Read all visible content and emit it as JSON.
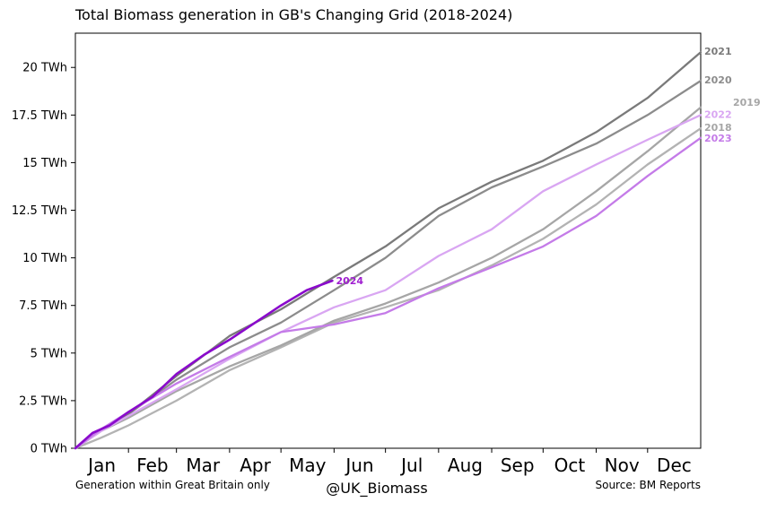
{
  "chart_data": {
    "type": "line",
    "title": "Total Biomass generation in GB's Changing Grid (2018-2024)",
    "footer_left": "Generation within Great Britain only",
    "footer_center": "@UK_Biomass",
    "footer_right": "Source: BM Reports",
    "x_ticks": [
      "Jan",
      "Feb",
      "Mar",
      "Apr",
      "May",
      "Jun",
      "Jul",
      "Aug",
      "Sep",
      "Oct",
      "Nov",
      "Dec"
    ],
    "y_ticks": [
      "0 TWh",
      "2.5 TWh",
      "5 TWh",
      "7.5 TWh",
      "10 TWh",
      "12.5 TWh",
      "15 TWh",
      "17.5 TWh",
      "20 TWh"
    ],
    "y_tick_values": [
      0,
      2.5,
      5,
      7.5,
      10,
      12.5,
      15,
      17.5,
      20
    ],
    "xlim": [
      0,
      365
    ],
    "ylim": [
      0,
      21.8
    ],
    "grid": false,
    "x_unit": "day of year",
    "y_unit": "TWh cumulative",
    "series": [
      {
        "name": "2018",
        "color": "#b3b3b3",
        "x": [
          0,
          15,
          31,
          59,
          90,
          120,
          151,
          181,
          212,
          243,
          273,
          304,
          334,
          365
        ],
        "y": [
          0,
          0.55,
          1.2,
          2.5,
          4.1,
          5.3,
          6.6,
          7.4,
          8.3,
          9.6,
          11.0,
          12.8,
          14.9,
          16.8
        ]
      },
      {
        "name": "2019",
        "color": "#a6a6a6",
        "x": [
          0,
          15,
          31,
          59,
          90,
          120,
          151,
          181,
          212,
          243,
          273,
          304,
          334,
          365
        ],
        "y": [
          0,
          0.9,
          1.6,
          3.0,
          4.3,
          5.4,
          6.7,
          7.6,
          8.7,
          10.0,
          11.5,
          13.5,
          15.6,
          17.9
        ]
      },
      {
        "name": "2020",
        "color": "#8c8c8c",
        "x": [
          0,
          15,
          31,
          59,
          90,
          120,
          151,
          181,
          212,
          243,
          273,
          304,
          334,
          365
        ],
        "y": [
          0,
          1.0,
          1.8,
          3.6,
          5.3,
          6.6,
          8.3,
          10.0,
          12.2,
          13.7,
          14.8,
          16.0,
          17.5,
          19.3
        ]
      },
      {
        "name": "2021",
        "color": "#7a7a7a",
        "x": [
          0,
          15,
          31,
          59,
          90,
          120,
          151,
          181,
          212,
          243,
          273,
          304,
          334,
          365
        ],
        "y": [
          0,
          1.0,
          1.8,
          3.8,
          5.9,
          7.3,
          9.0,
          10.6,
          12.6,
          14.0,
          15.1,
          16.6,
          18.4,
          20.8
        ]
      },
      {
        "name": "2022",
        "color": "#d9a6f2",
        "x": [
          0,
          15,
          31,
          59,
          90,
          120,
          151,
          181,
          212,
          243,
          273,
          304,
          334,
          365
        ],
        "y": [
          0,
          0.9,
          1.7,
          3.1,
          4.7,
          6.1,
          7.4,
          8.3,
          10.1,
          11.5,
          13.5,
          14.9,
          16.2,
          17.5
        ]
      },
      {
        "name": "2023",
        "color": "#c47be8",
        "x": [
          0,
          15,
          31,
          59,
          90,
          120,
          151,
          181,
          212,
          243,
          273,
          304,
          334,
          365
        ],
        "y": [
          0,
          1.0,
          1.9,
          3.4,
          4.8,
          6.1,
          6.5,
          7.1,
          8.4,
          9.5,
          10.6,
          12.2,
          14.3,
          16.3
        ]
      },
      {
        "name": "2024",
        "color": "#8a0acc",
        "x": [
          0,
          10,
          20,
          31,
          45,
          59,
          75,
          90,
          105,
          120,
          135,
          150
        ],
        "y": [
          0,
          0.8,
          1.2,
          1.9,
          2.7,
          3.9,
          4.9,
          5.7,
          6.6,
          7.5,
          8.3,
          8.8
        ]
      }
    ],
    "label_colors": {
      "2021": "#7a7a7a",
      "2020": "#8c8c8c",
      "2019": "#a6a6a6",
      "2022": "#d9a6f2",
      "2018": "#a6a6a6",
      "2023": "#c47be8",
      "2024": "#a020d0"
    }
  }
}
